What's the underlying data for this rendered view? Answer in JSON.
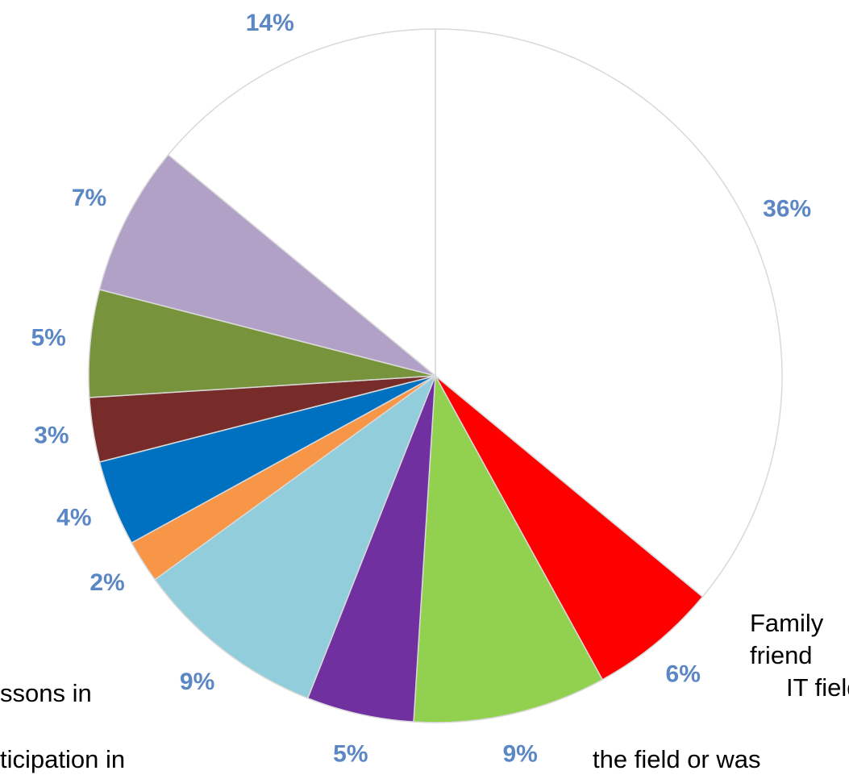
{
  "chart_data": {
    "type": "pie",
    "values": [
      36,
      6,
      9,
      5,
      9,
      2,
      4,
      3,
      5,
      7,
      14
    ],
    "value_labels": [
      "36%",
      "6%",
      "9%",
      "5%",
      "9%",
      "2%",
      "4%",
      "3%",
      "5%",
      "7%",
      "14%"
    ],
    "colors": [
      "#ffffff",
      "#ff0000",
      "#92d050",
      "#7030a0",
      "#92cddc",
      "#f79646",
      "#0070c0",
      "#772c2a",
      "#77933c",
      "#b2a1c7",
      "#ffffff"
    ],
    "annotations": [
      "Family",
      "friend",
      "IT field",
      "the field or was",
      "ssons in",
      "ticipation in"
    ]
  }
}
